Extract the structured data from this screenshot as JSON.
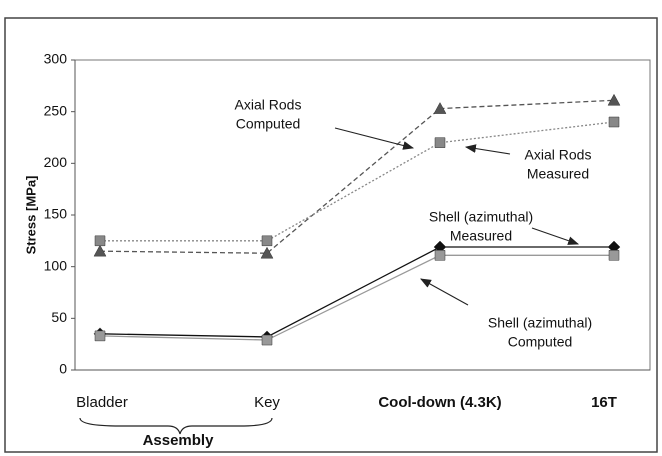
{
  "chart_data": {
    "type": "line",
    "y_label": "Stress [MPa]",
    "categories": [
      "Bladder",
      "Key",
      "Cool-down (4.3K)",
      "16T"
    ],
    "group_label": "Assembly",
    "ylim": [
      0,
      300
    ],
    "yticks": [
      0,
      50,
      100,
      150,
      200,
      250,
      300
    ],
    "series": [
      {
        "name": "Axial Rods Computed",
        "color": "#555555",
        "marker": "triangle",
        "dash": "dashed",
        "values": [
          115,
          113,
          253,
          261
        ]
      },
      {
        "name": "Axial Rods Measured",
        "color": "#888888",
        "marker": "square",
        "dash": "dotted",
        "values": [
          125,
          125,
          220,
          240
        ]
      },
      {
        "name": "Shell (azimuthal) Measured",
        "color": "#111111",
        "marker": "diamond",
        "dash": "solid",
        "values": [
          35,
          32,
          119,
          119
        ]
      },
      {
        "name": "Shell (azimuthal) Computed",
        "color": "#999999",
        "marker": "square",
        "dash": "solid",
        "values": [
          33,
          29,
          111,
          111
        ]
      }
    ],
    "annotations": [
      {
        "lines": [
          "Axial Rods",
          "Computed"
        ]
      },
      {
        "lines": [
          "Axial Rods",
          "Measured"
        ]
      },
      {
        "lines": [
          "Shell (azimuthal)",
          "Measured"
        ]
      },
      {
        "lines": [
          "Shell (azimuthal)",
          "Computed"
        ]
      }
    ]
  }
}
